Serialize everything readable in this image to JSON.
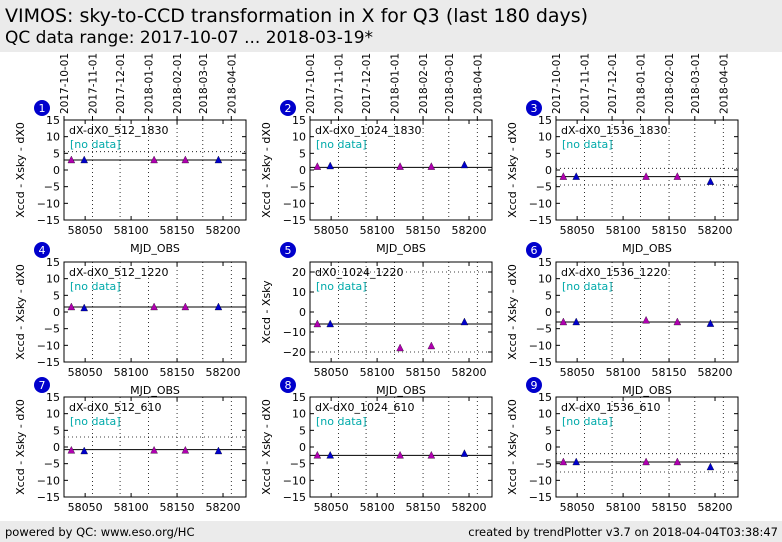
{
  "header": {
    "title": "VIMOS: sky-to-CCD transformation in X for Q3 (last 180 days)",
    "subtitle": "QC data range: 2017-10-07 ... 2018-03-19*"
  },
  "footer": {
    "left": "powered by QC: www.eso.org/HC",
    "right": "created by trendPlotter v3.7 on 2018-04-04T03:38:47"
  },
  "colors": {
    "badge": "#0000cc",
    "marker_blue": "#0000cc",
    "marker_magenta": "#b000b0",
    "nodata": "#00aaaa",
    "bg": "#ebebeb"
  },
  "top_axis_dates": [
    "2017-10-01",
    "2017-11-01",
    "2017-12-01",
    "2018-01-01",
    "2018-02-01",
    "2018-03-01",
    "2018-04-01"
  ],
  "chart_data": [
    {
      "type": "scatter",
      "id": "1",
      "label": "dX-dX0_512_1830",
      "nodata": "[no data]",
      "ylabel": "Xccd - Xsky - dX0",
      "xlabel": "MJD_OBS",
      "xlim": [
        58027,
        58225
      ],
      "ylim": [
        -15,
        15
      ],
      "yticks": [
        -15,
        -10,
        -5,
        0,
        5,
        10,
        15
      ],
      "xticks": [
        58050,
        58100,
        58150,
        58200
      ],
      "ref": 3,
      "ref_dotted": [
        5.5
      ],
      "points": [
        {
          "x": 58035,
          "y": 3,
          "c": "m"
        },
        {
          "x": 58049,
          "y": 3,
          "c": "b"
        },
        {
          "x": 58125,
          "y": 3,
          "c": "m"
        },
        {
          "x": 58159,
          "y": 3,
          "c": "m"
        },
        {
          "x": 58195,
          "y": 3,
          "c": "b"
        }
      ]
    },
    {
      "type": "scatter",
      "id": "2",
      "label": "dX-dX0_1024_1830",
      "nodata": "[no data]",
      "ylabel": "Xccd - Xsky - dX0",
      "xlabel": "MJD_OBS",
      "xlim": [
        58027,
        58225
      ],
      "ylim": [
        -15,
        15
      ],
      "yticks": [
        -15,
        -10,
        -5,
        0,
        5,
        10,
        15
      ],
      "xticks": [
        58050,
        58100,
        58150,
        58200
      ],
      "ref": 0.8,
      "ref_dotted": [],
      "points": [
        {
          "x": 58035,
          "y": 1,
          "c": "m"
        },
        {
          "x": 58049,
          "y": 1.2,
          "c": "b"
        },
        {
          "x": 58125,
          "y": 1,
          "c": "m"
        },
        {
          "x": 58159,
          "y": 1,
          "c": "m"
        },
        {
          "x": 58195,
          "y": 1.5,
          "c": "b"
        }
      ]
    },
    {
      "type": "scatter",
      "id": "3",
      "label": "dX-dX0_1536_1830",
      "nodata": "[no data]",
      "ylabel": "Xccd - Xsky - dX0",
      "xlabel": "MJD_OBS",
      "xlim": [
        58027,
        58225
      ],
      "ylim": [
        -15,
        15
      ],
      "yticks": [
        -15,
        -10,
        -5,
        0,
        5,
        10,
        15
      ],
      "xticks": [
        58050,
        58100,
        58150,
        58200
      ],
      "ref": -2,
      "ref_dotted": [
        0.5,
        -4.5
      ],
      "points": [
        {
          "x": 58035,
          "y": -2,
          "c": "m"
        },
        {
          "x": 58049,
          "y": -2,
          "c": "b"
        },
        {
          "x": 58125,
          "y": -2,
          "c": "m"
        },
        {
          "x": 58159,
          "y": -2,
          "c": "m"
        },
        {
          "x": 58195,
          "y": -3.5,
          "c": "b"
        }
      ]
    },
    {
      "type": "scatter",
      "id": "4",
      "label": "dX-dX0_512_1220",
      "nodata": "[no data]",
      "ylabel": "Xccd - Xsky - dX0",
      "xlabel": "MJD_OBS",
      "xlim": [
        58027,
        58225
      ],
      "ylim": [
        -15,
        15
      ],
      "yticks": [
        -15,
        -10,
        -5,
        0,
        5,
        10,
        15
      ],
      "xticks": [
        58050,
        58100,
        58150,
        58200
      ],
      "ref": 1.5,
      "ref_dotted": [],
      "points": [
        {
          "x": 58035,
          "y": 1.5,
          "c": "m"
        },
        {
          "x": 58049,
          "y": 1.2,
          "c": "b"
        },
        {
          "x": 58125,
          "y": 1.5,
          "c": "m"
        },
        {
          "x": 58159,
          "y": 1.5,
          "c": "m"
        },
        {
          "x": 58195,
          "y": 1.5,
          "c": "b"
        }
      ]
    },
    {
      "type": "scatter",
      "id": "5",
      "label": "dX0_1024_1220",
      "nodata": "[no data]",
      "ylabel": "Xccd - Xsky",
      "xlabel": "MJD_OBS",
      "xlim": [
        58027,
        58225
      ],
      "ylim": [
        -25,
        25
      ],
      "yticks": [
        -20,
        -10,
        0,
        10,
        20
      ],
      "xticks": [
        58050,
        58100,
        58150,
        58200
      ],
      "ref": -6,
      "ref_dotted": [
        20,
        -20
      ],
      "points": [
        {
          "x": 58035,
          "y": -6,
          "c": "m"
        },
        {
          "x": 58049,
          "y": -6,
          "c": "b"
        },
        {
          "x": 58125,
          "y": -18,
          "c": "m"
        },
        {
          "x": 58159,
          "y": -17,
          "c": "m"
        },
        {
          "x": 58195,
          "y": -5,
          "c": "b"
        }
      ]
    },
    {
      "type": "scatter",
      "id": "6",
      "label": "dX-dX0_1536_1220",
      "nodata": "[no data]",
      "ylabel": "Xccd - Xsky - dX0",
      "xlabel": "MJD_OBS",
      "xlim": [
        58027,
        58225
      ],
      "ylim": [
        -15,
        15
      ],
      "yticks": [
        -15,
        -10,
        -5,
        0,
        5,
        10,
        15
      ],
      "xticks": [
        58050,
        58100,
        58150,
        58200
      ],
      "ref": -3,
      "ref_dotted": [],
      "points": [
        {
          "x": 58035,
          "y": -3,
          "c": "m"
        },
        {
          "x": 58049,
          "y": -3,
          "c": "b"
        },
        {
          "x": 58125,
          "y": -2.5,
          "c": "m"
        },
        {
          "x": 58159,
          "y": -3,
          "c": "m"
        },
        {
          "x": 58195,
          "y": -3.5,
          "c": "b"
        }
      ]
    },
    {
      "type": "scatter",
      "id": "7",
      "label": "dX-dX0_512_610",
      "nodata": "[no data]",
      "ylabel": "Xccd - Xsky - dX0",
      "xlabel": "",
      "xlim": [
        58027,
        58225
      ],
      "ylim": [
        -15,
        15
      ],
      "yticks": [
        -15,
        -10,
        -5,
        0,
        5,
        10,
        15
      ],
      "xticks": [
        58050,
        58100,
        58150,
        58200
      ],
      "ref": -0.8,
      "ref_dotted": [
        3
      ],
      "points": [
        {
          "x": 58035,
          "y": -1,
          "c": "m"
        },
        {
          "x": 58049,
          "y": -1.2,
          "c": "b"
        },
        {
          "x": 58125,
          "y": -1,
          "c": "m"
        },
        {
          "x": 58159,
          "y": -1,
          "c": "m"
        },
        {
          "x": 58195,
          "y": -1.2,
          "c": "b"
        }
      ]
    },
    {
      "type": "scatter",
      "id": "8",
      "label": "dX-dX0_1024_610",
      "nodata": "[no data]",
      "ylabel": "Xccd - Xsky - dX0",
      "xlabel": "",
      "xlim": [
        58027,
        58225
      ],
      "ylim": [
        -15,
        15
      ],
      "yticks": [
        -15,
        -10,
        -5,
        0,
        5,
        10,
        15
      ],
      "xticks": [
        58050,
        58100,
        58150,
        58200
      ],
      "ref": -2.5,
      "ref_dotted": [],
      "points": [
        {
          "x": 58035,
          "y": -2.5,
          "c": "m"
        },
        {
          "x": 58049,
          "y": -2.5,
          "c": "b"
        },
        {
          "x": 58125,
          "y": -2.5,
          "c": "m"
        },
        {
          "x": 58159,
          "y": -2.5,
          "c": "m"
        },
        {
          "x": 58195,
          "y": -2,
          "c": "b"
        }
      ]
    },
    {
      "type": "scatter",
      "id": "9",
      "label": "dX-dX0_1536_610",
      "nodata": "[no data]",
      "ylabel": "Xccd - Xsky - dX0",
      "xlabel": "",
      "xlim": [
        58027,
        58225
      ],
      "ylim": [
        -15,
        15
      ],
      "yticks": [
        -15,
        -10,
        -5,
        0,
        5,
        10,
        15
      ],
      "xticks": [
        58050,
        58100,
        58150,
        58200
      ],
      "ref": -4.5,
      "ref_dotted": [
        -2,
        -7.5
      ],
      "points": [
        {
          "x": 58035,
          "y": -4.5,
          "c": "m"
        },
        {
          "x": 58049,
          "y": -4.5,
          "c": "b"
        },
        {
          "x": 58125,
          "y": -4.5,
          "c": "m"
        },
        {
          "x": 58159,
          "y": -4.5,
          "c": "m"
        },
        {
          "x": 58195,
          "y": -6,
          "c": "b"
        }
      ]
    }
  ]
}
